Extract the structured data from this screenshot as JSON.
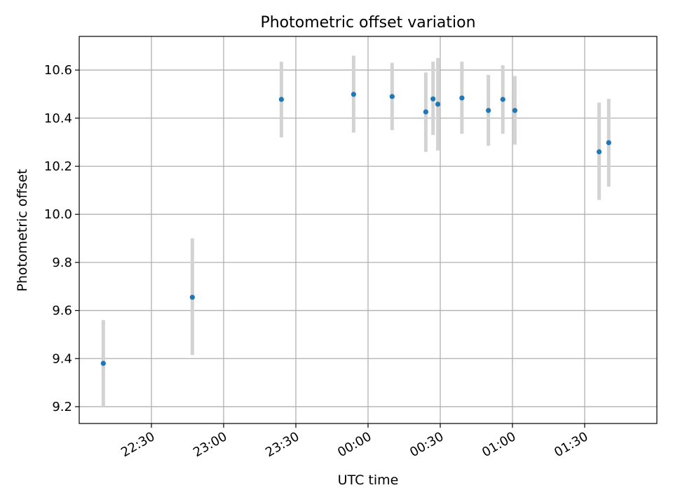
{
  "chart_data": {
    "type": "scatter",
    "title": "Photometric offset variation",
    "xlabel": "UTC time",
    "ylabel": "Photometric offset",
    "x_ticks": [
      "22:30",
      "23:00",
      "23:30",
      "00:00",
      "00:30",
      "01:00",
      "01:30"
    ],
    "y_ticks": [
      "9.2",
      "9.4",
      "9.6",
      "9.8",
      "10.0",
      "10.2",
      "10.4",
      "10.6"
    ],
    "xlim": [
      "22:00",
      "02:00"
    ],
    "ylim": [
      9.13,
      10.74
    ],
    "grid": true,
    "series": [
      {
        "points": [
          {
            "x": "22:10",
            "y": 9.38,
            "err_low": 9.2,
            "err_high": 9.56
          },
          {
            "x": "22:47",
            "y": 9.655,
            "err_low": 9.415,
            "err_high": 9.9
          },
          {
            "x": "23:24",
            "y": 10.478,
            "err_low": 10.32,
            "err_high": 10.635
          },
          {
            "x": "23:54",
            "y": 10.499,
            "err_low": 10.34,
            "err_high": 10.66
          },
          {
            "x": "00:10",
            "y": 10.49,
            "err_low": 10.35,
            "err_high": 10.63
          },
          {
            "x": "00:24",
            "y": 10.426,
            "err_low": 10.26,
            "err_high": 10.59
          },
          {
            "x": "00:27",
            "y": 10.48,
            "err_low": 10.33,
            "err_high": 10.635
          },
          {
            "x": "00:29",
            "y": 10.458,
            "err_low": 10.265,
            "err_high": 10.65
          },
          {
            "x": "00:39",
            "y": 10.484,
            "err_low": 10.335,
            "err_high": 10.635
          },
          {
            "x": "00:50",
            "y": 10.432,
            "err_low": 10.285,
            "err_high": 10.58
          },
          {
            "x": "00:56",
            "y": 10.478,
            "err_low": 10.335,
            "err_high": 10.62
          },
          {
            "x": "01:01",
            "y": 10.432,
            "err_low": 10.29,
            "err_high": 10.575
          },
          {
            "x": "01:36",
            "y": 10.26,
            "err_low": 10.06,
            "err_high": 10.465
          },
          {
            "x": "01:40",
            "y": 10.298,
            "err_low": 10.115,
            "err_high": 10.48
          }
        ]
      }
    ],
    "colors": {
      "marker": "#1f77b4",
      "errorbar": "#d3d3d3",
      "grid": "#b0b0b0"
    }
  }
}
